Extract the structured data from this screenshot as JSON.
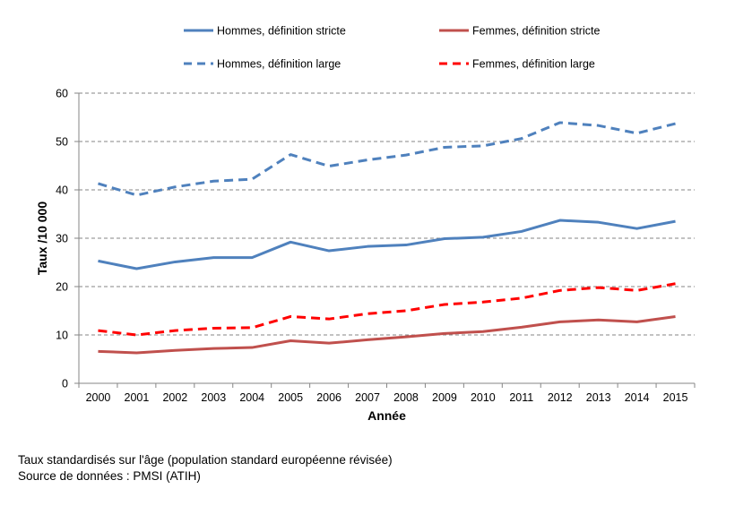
{
  "chart_data": {
    "type": "line",
    "title": "",
    "xlabel": "Année",
    "ylabel": "Taux /10 000",
    "ylim": [
      0,
      60
    ],
    "yticks": [
      0,
      10,
      20,
      30,
      40,
      50,
      60
    ],
    "grid": true,
    "legend_position": "top",
    "categories": [
      "2000",
      "2001",
      "2002",
      "2003",
      "2004",
      "2005",
      "2006",
      "2007",
      "2008",
      "2009",
      "2010",
      "2011",
      "2012",
      "2013",
      "2014",
      "2015"
    ],
    "series": [
      {
        "name": "Hommes, définition stricte",
        "color": "#4F81BD",
        "style": "solid",
        "values": [
          25.3,
          23.7,
          25.1,
          26.0,
          26.0,
          29.2,
          27.4,
          28.3,
          28.6,
          29.9,
          30.2,
          31.4,
          33.7,
          33.3,
          32.0,
          33.5
        ]
      },
      {
        "name": "Femmes, définition stricte",
        "color": "#C0504D",
        "style": "solid",
        "values": [
          6.6,
          6.3,
          6.8,
          7.2,
          7.4,
          8.8,
          8.3,
          9.0,
          9.6,
          10.3,
          10.7,
          11.6,
          12.7,
          13.1,
          12.7,
          13.8
        ]
      },
      {
        "name": "Hommes, définition large",
        "color": "#4F81BD",
        "style": "dashed",
        "values": [
          41.3,
          38.9,
          40.6,
          41.8,
          42.2,
          47.3,
          44.9,
          46.2,
          47.2,
          48.8,
          49.1,
          50.6,
          53.9,
          53.3,
          51.7,
          53.7
        ]
      },
      {
        "name": "Femmes, définition large",
        "color": "#FF0000",
        "style": "dashed",
        "values": [
          10.9,
          10.0,
          10.9,
          11.4,
          11.5,
          13.8,
          13.3,
          14.4,
          15.0,
          16.3,
          16.8,
          17.6,
          19.2,
          19.8,
          19.2,
          20.6
        ]
      }
    ]
  },
  "notes": [
    "Taux standardisés sur l'âge (population standard européenne révisée)",
    "Source de données : PMSI (ATIH)"
  ]
}
